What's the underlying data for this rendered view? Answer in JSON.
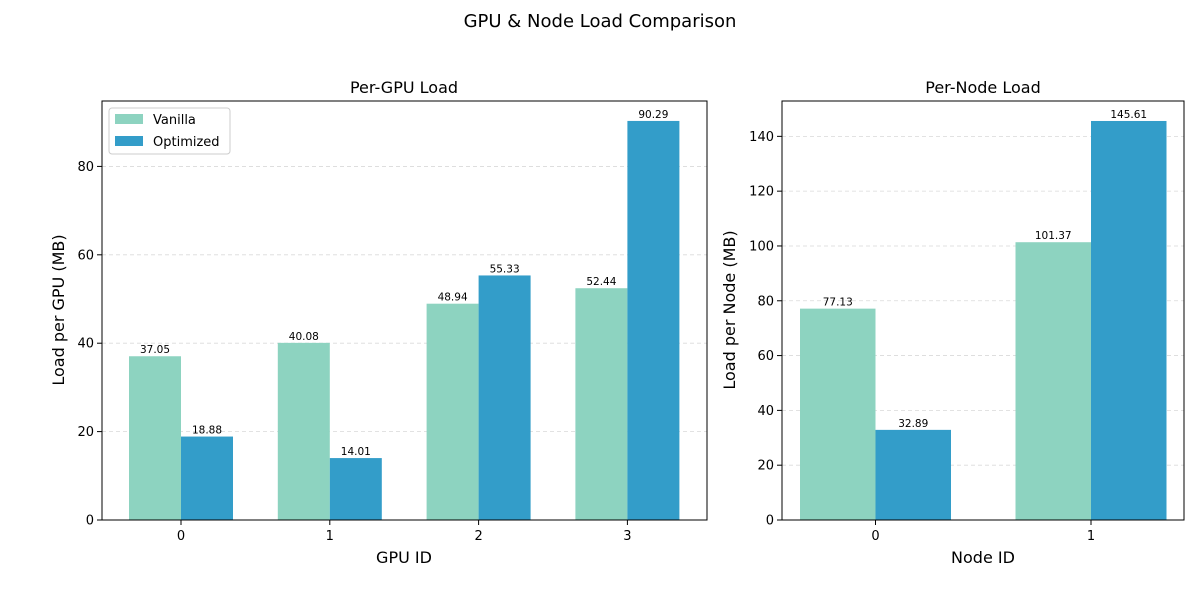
{
  "suptitle": "GPU & Node Load Comparison",
  "colors": {
    "vanilla": "#8dd3c0",
    "optimized": "#339dc9"
  },
  "chart_data": [
    {
      "type": "bar",
      "title": "Per-GPU Load",
      "xlabel": "GPU ID",
      "ylabel": "Load per GPU (MB)",
      "categories": [
        "0",
        "1",
        "2",
        "3"
      ],
      "series": [
        {
          "name": "Vanilla",
          "values": [
            37.05,
            40.08,
            48.94,
            52.44
          ],
          "labels": [
            "37.05",
            "40.08",
            "48.94",
            "52.44"
          ]
        },
        {
          "name": "Optimized",
          "values": [
            18.88,
            14.01,
            55.33,
            90.29
          ],
          "labels": [
            "18.88",
            "14.01",
            "55.33",
            "90.29"
          ]
        }
      ],
      "ylim": [
        0,
        94.8
      ],
      "yticks": [
        0,
        20,
        40,
        60,
        80
      ],
      "grid": "y-dashed",
      "legend": "upper left"
    },
    {
      "type": "bar",
      "title": "Per-Node Load",
      "xlabel": "Node ID",
      "ylabel": "Load per Node (MB)",
      "categories": [
        "0",
        "1"
      ],
      "series": [
        {
          "values": [
            77.13,
            101.37
          ],
          "labels": [
            "77.13",
            "101.37"
          ]
        },
        {
          "values": [
            32.89,
            145.61
          ],
          "labels": [
            "32.89",
            "145.61"
          ]
        }
      ],
      "ylim": [
        0,
        152.9
      ],
      "yticks": [
        0,
        20,
        40,
        60,
        80,
        100,
        120,
        140
      ],
      "grid": "y-dashed"
    }
  ]
}
